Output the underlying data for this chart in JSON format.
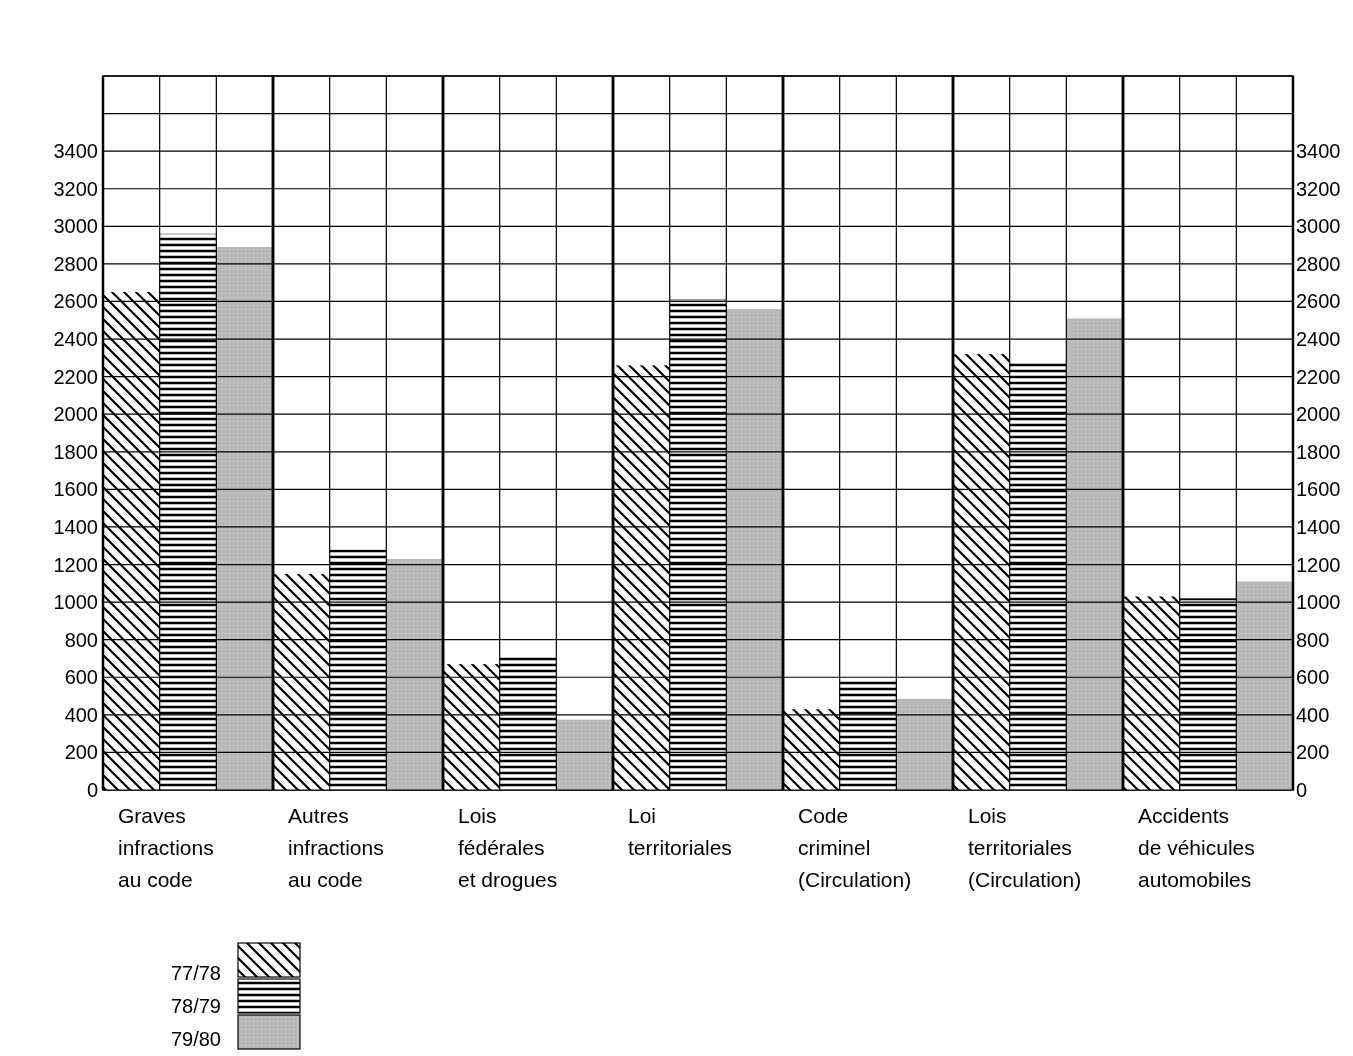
{
  "chart_data": {
    "type": "bar",
    "categories": [
      "Graves\ninfractions\nau code",
      "Autres\ninfractions\nau code",
      "Lois\nfédérales\net drogues",
      "Loi\nterritoriales",
      "Code\ncriminel\n(Circulation)",
      "Lois\nterritoriales\n(Circulation)",
      "Accidents\nde véhicules\nautomobiles"
    ],
    "series": [
      {
        "name": "77/78",
        "color": "#000000",
        "values": [
          2650,
          1150,
          670,
          2260,
          430,
          2320,
          1030
        ]
      },
      {
        "name": "78/79",
        "color": "#000000",
        "values": [
          2960,
          1280,
          710,
          2610,
          590,
          2280,
          1020
        ]
      },
      {
        "name": "79/80",
        "color": "#b8b8b8",
        "values": [
          2890,
          1230,
          375,
          2560,
          485,
          2510,
          1110
        ]
      }
    ],
    "ylim": [
      0,
      3800
    ],
    "yticks": [
      0,
      200,
      400,
      600,
      800,
      1000,
      1200,
      1400,
      1600,
      1800,
      2000,
      2200,
      2400,
      2600,
      2800,
      3000,
      3200,
      3400,
      {
        "value": 3600,
        "label": null
      },
      {
        "value": 3800,
        "label": null
      }
    ],
    "y2lim": [
      0,
      3800
    ],
    "y2ticks": [
      0,
      200,
      400,
      600,
      800,
      1000,
      1200,
      1400,
      1600,
      1800,
      2000,
      2200,
      2400,
      2600,
      2800,
      3000,
      3200,
      3400
    ],
    "grid": true,
    "legend": "bottom left"
  }
}
